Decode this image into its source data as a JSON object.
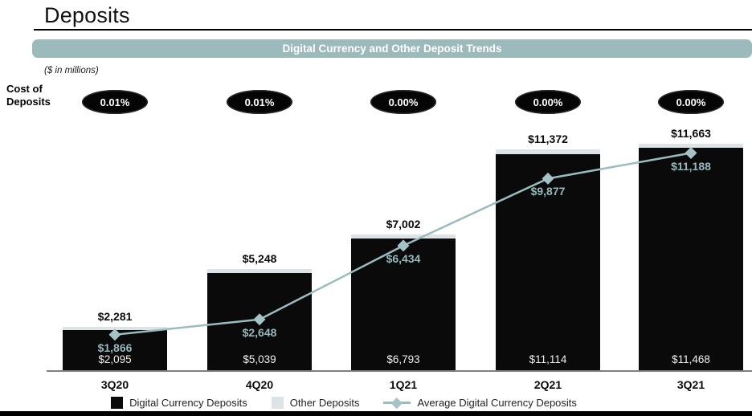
{
  "page": {
    "title": "Deposits",
    "banner_title": "Digital Currency and Other Deposit Trends",
    "units_note": "($ in millions)",
    "cost_row_label": "Cost of Deposits"
  },
  "colors": {
    "banner_bg": "#9cbabc",
    "bar_digital_currency": "#0a0a0a",
    "bar_other_deposits": "#dce4e7",
    "average_line": "#9abbbf",
    "diamond_marker": "#a5c3c7",
    "line_label_text": "#97b9bd",
    "inbar_label_text": "#f1efe9",
    "oval_bg": "#050505",
    "axis": "#7f7f7f"
  },
  "chart_data": {
    "type": "bar",
    "subtype": "stacked-bar-with-line",
    "title": "Digital Currency and Other Deposit Trends",
    "units": "$ in millions",
    "categories": [
      "3Q20",
      "4Q20",
      "1Q21",
      "2Q21",
      "3Q21"
    ],
    "series": [
      {
        "name": "Digital Currency Deposits",
        "type": "bar",
        "values": [
          2095,
          5039,
          6793,
          11114,
          11468
        ]
      },
      {
        "name": "Other Deposits",
        "type": "bar",
        "values": [
          186,
          209,
          209,
          258,
          195
        ]
      },
      {
        "name": "Average Digital Currency Deposits",
        "type": "line",
        "values": [
          1866,
          2648,
          6434,
          9877,
          11188
        ]
      }
    ],
    "totals": [
      2281,
      5248,
      7002,
      11372,
      11663
    ],
    "total_labels": [
      "$2,281",
      "$5,248",
      "$7,002",
      "$11,372",
      "$11,663"
    ],
    "inbar_labels": [
      "$2,095",
      "$5,039",
      "$6,793",
      "$11,114",
      "$11,468"
    ],
    "line_labels": [
      "$1,866",
      "$2,648",
      "$6,434",
      "$9,877",
      "$11,188"
    ],
    "cost_of_deposits": [
      "0.01%",
      "0.01%",
      "0.00%",
      "0.00%",
      "0.00%"
    ],
    "legend": [
      "Digital Currency Deposits",
      "Other Deposits",
      "Average Digital Currency Deposits"
    ],
    "legend_position": "bottom",
    "grid": false,
    "ylim": [
      0,
      11663
    ]
  }
}
